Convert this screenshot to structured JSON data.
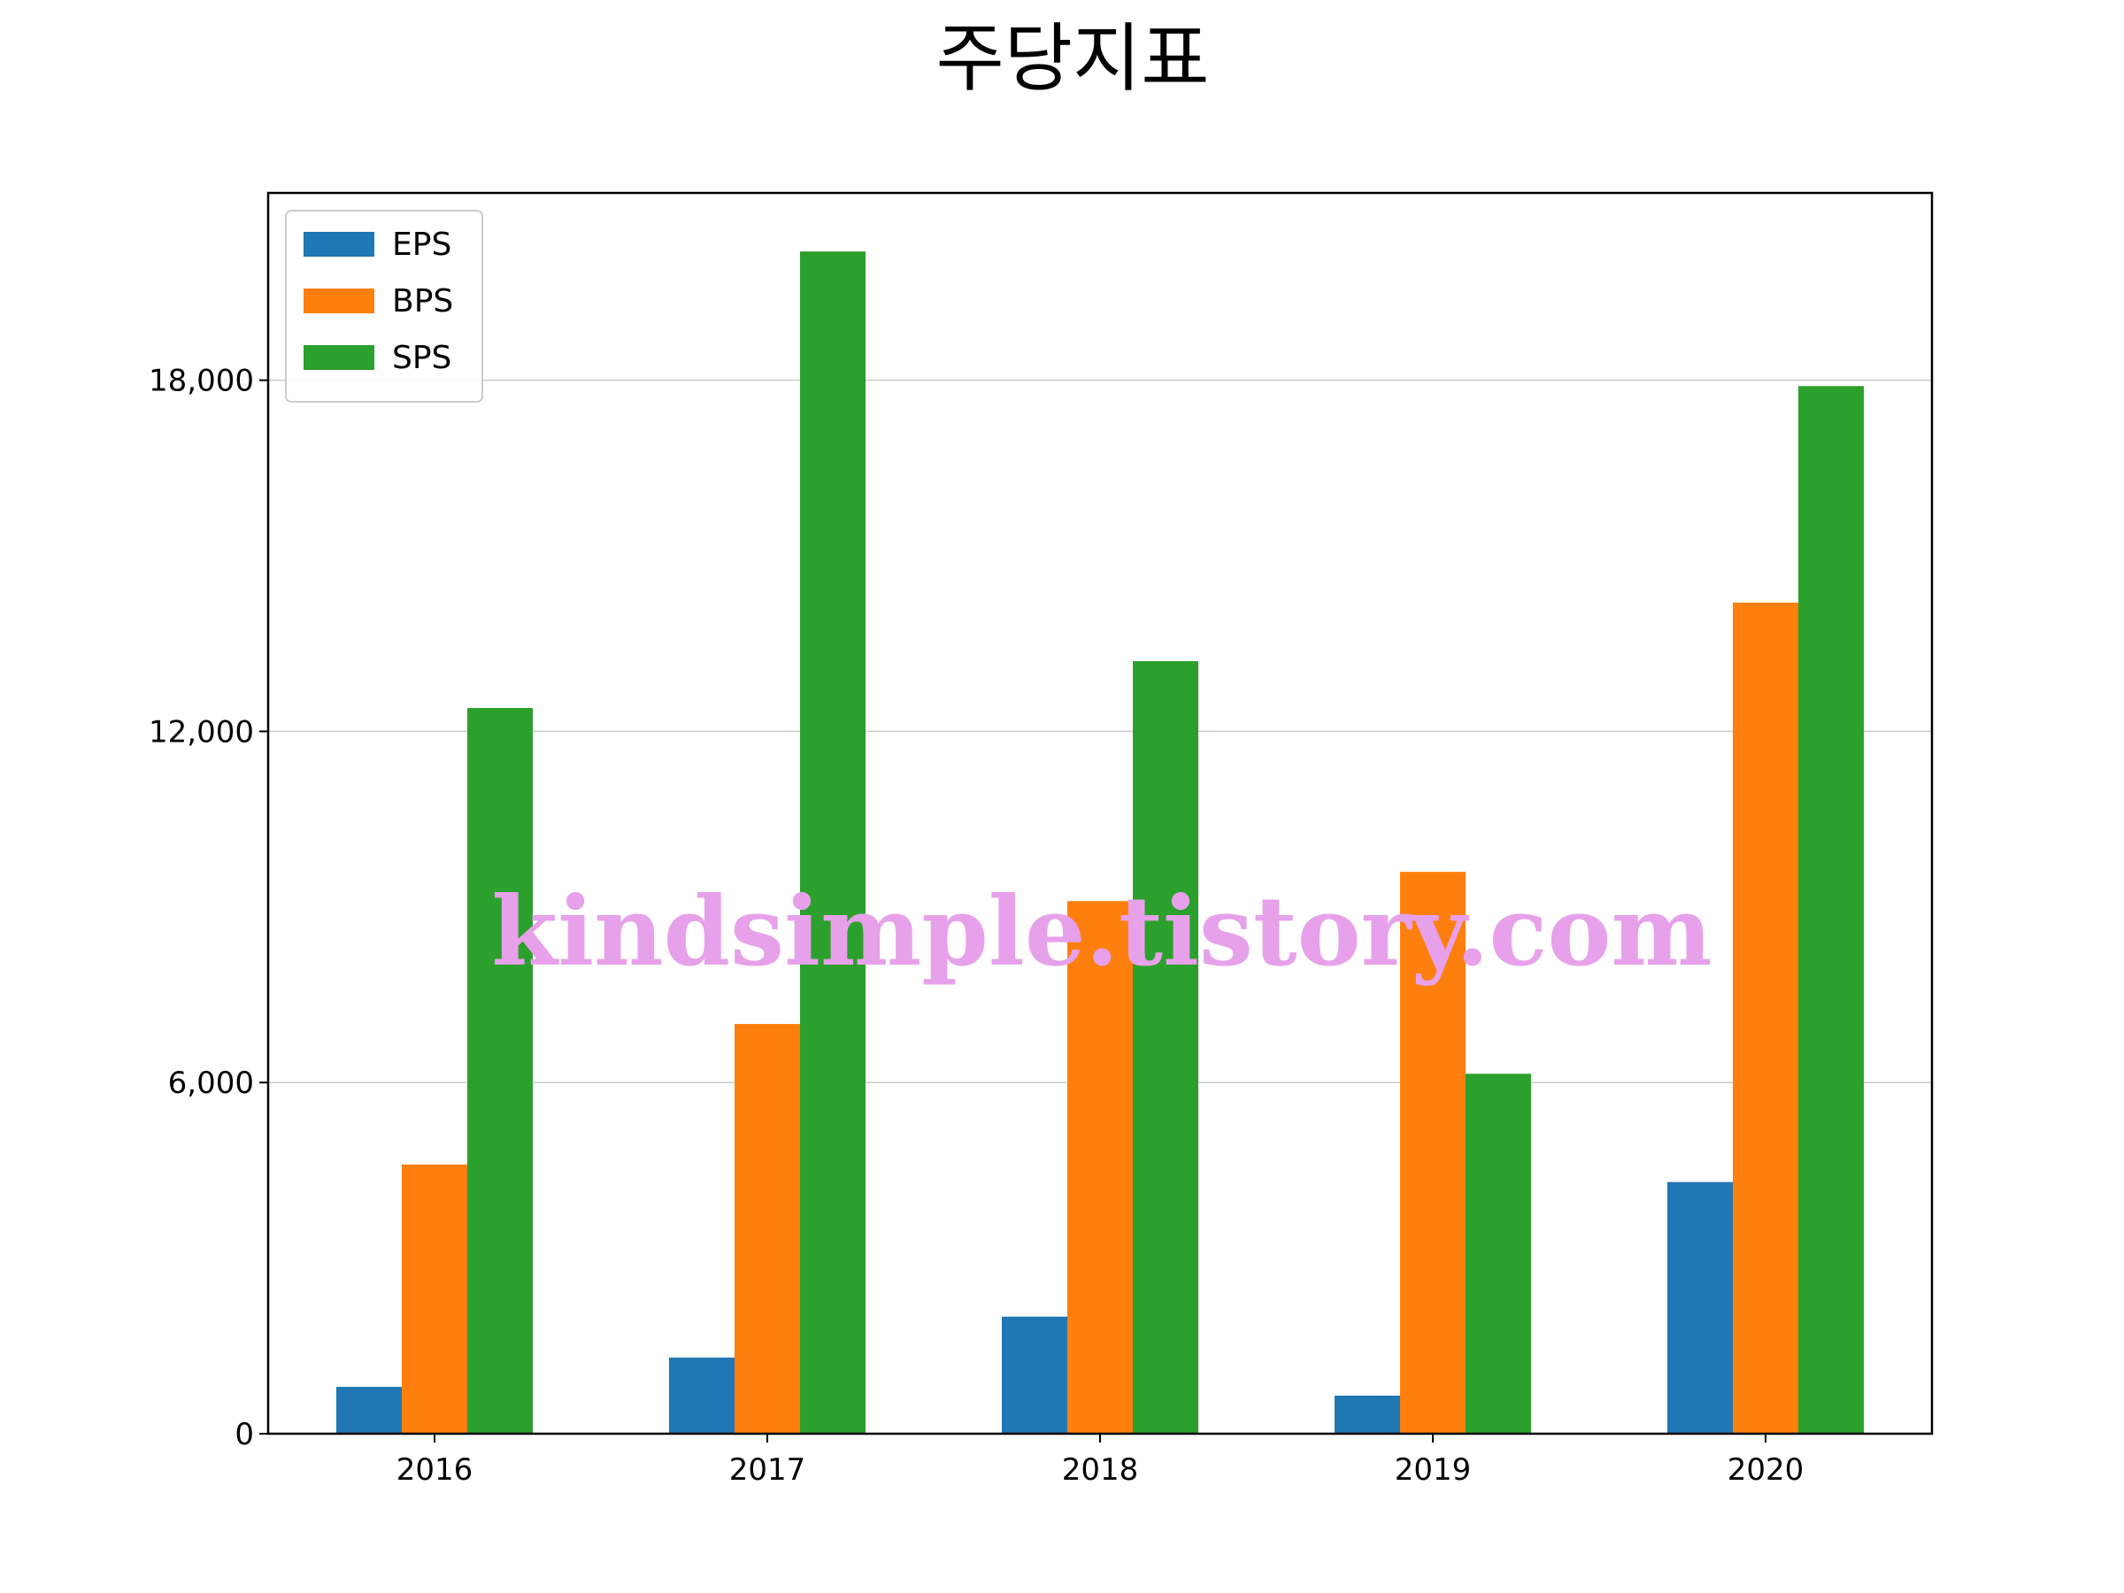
{
  "chart_data": {
    "type": "bar",
    "title": "주당지표",
    "categories": [
      "2016",
      "2017",
      "2018",
      "2019",
      "2020"
    ],
    "series": [
      {
        "name": "EPS",
        "color": "#1f77b4",
        "values": [
          800,
          1300,
          2000,
          650,
          4300
        ]
      },
      {
        "name": "BPS",
        "color": "#ff7f0e",
        "values": [
          4600,
          7000,
          9100,
          9600,
          14200
        ]
      },
      {
        "name": "SPS",
        "color": "#2ca02c",
        "values": [
          12400,
          20200,
          13200,
          6150,
          17900
        ]
      }
    ],
    "ylim": [
      0,
      21200
    ],
    "yticks": [
      0,
      6000,
      12000,
      18000
    ],
    "ytick_labels": [
      "0",
      "6,000",
      "12,000",
      "18,000"
    ],
    "grid": "y",
    "legend_position": "top-left",
    "watermark": "kindsimple.tistory.com"
  }
}
